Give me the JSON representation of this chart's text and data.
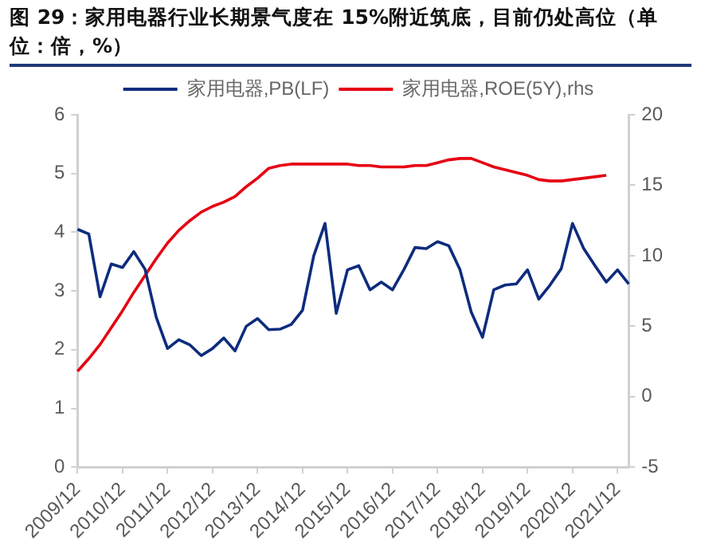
{
  "chart_data": {
    "type": "line",
    "title": "图 29：家用电器行业长期景气度在 15%附近筑底，目前仍处高位（单位：倍，%）",
    "categories": [
      "2009/12",
      null,
      null,
      null,
      "2010/12",
      null,
      null,
      null,
      "2011/12",
      null,
      null,
      null,
      "2012/12",
      null,
      null,
      null,
      "2013/12",
      null,
      null,
      null,
      "2014/12",
      null,
      null,
      null,
      "2015/12",
      null,
      null,
      null,
      "2016/12",
      null,
      null,
      null,
      "2017/12",
      null,
      null,
      null,
      "2018/12",
      null,
      null,
      null,
      "2019/12",
      null,
      null,
      null,
      "2020/12",
      null,
      null,
      null,
      "2021/12",
      null
    ],
    "series": [
      {
        "name": "家用电器,PB(LF)",
        "color": "#0d2c7e",
        "values": [
          4.05,
          3.97,
          2.9,
          3.46,
          3.4,
          3.67,
          3.37,
          2.55,
          2.02,
          2.17,
          2.08,
          1.9,
          2.02,
          2.2,
          1.98,
          2.4,
          2.53,
          2.34,
          2.35,
          2.43,
          2.67,
          3.6,
          4.15,
          2.62,
          3.36,
          3.43,
          3.02,
          3.15,
          3.02,
          3.36,
          3.74,
          3.72,
          3.84,
          3.77,
          3.36,
          2.64,
          2.21,
          3.02,
          3.1,
          3.12,
          3.36,
          2.86,
          3.1,
          3.38,
          4.15,
          3.72,
          3.43,
          3.15,
          3.36,
          3.12
        ]
      },
      {
        "name": "家用电器,ROE(5Y),rhs",
        "color": "#e60012",
        "axis": "y2",
        "values": [
          1.8,
          2.7,
          3.7,
          4.9,
          6.1,
          7.4,
          8.6,
          9.8,
          10.9,
          11.8,
          12.5,
          13.1,
          13.5,
          13.8,
          14.2,
          14.9,
          15.5,
          16.2,
          16.4,
          16.5,
          16.5,
          16.5,
          16.5,
          16.5,
          16.5,
          16.4,
          16.4,
          16.3,
          16.3,
          16.3,
          16.4,
          16.4,
          16.6,
          16.8,
          16.9,
          16.9,
          16.6,
          16.3,
          16.1,
          15.9,
          15.7,
          15.4,
          15.3,
          15.3,
          15.4,
          15.5,
          15.6,
          15.7,
          null,
          null
        ]
      }
    ],
    "ylim": [
      0,
      6
    ],
    "yticks": [
      0,
      1,
      2,
      3,
      4,
      5,
      6
    ],
    "y2lim": [
      -5,
      20
    ],
    "y2ticks": [
      -5,
      0,
      5,
      10,
      15,
      20
    ],
    "legend": "top",
    "grid": false,
    "marker": "none",
    "line_style": "solid"
  }
}
